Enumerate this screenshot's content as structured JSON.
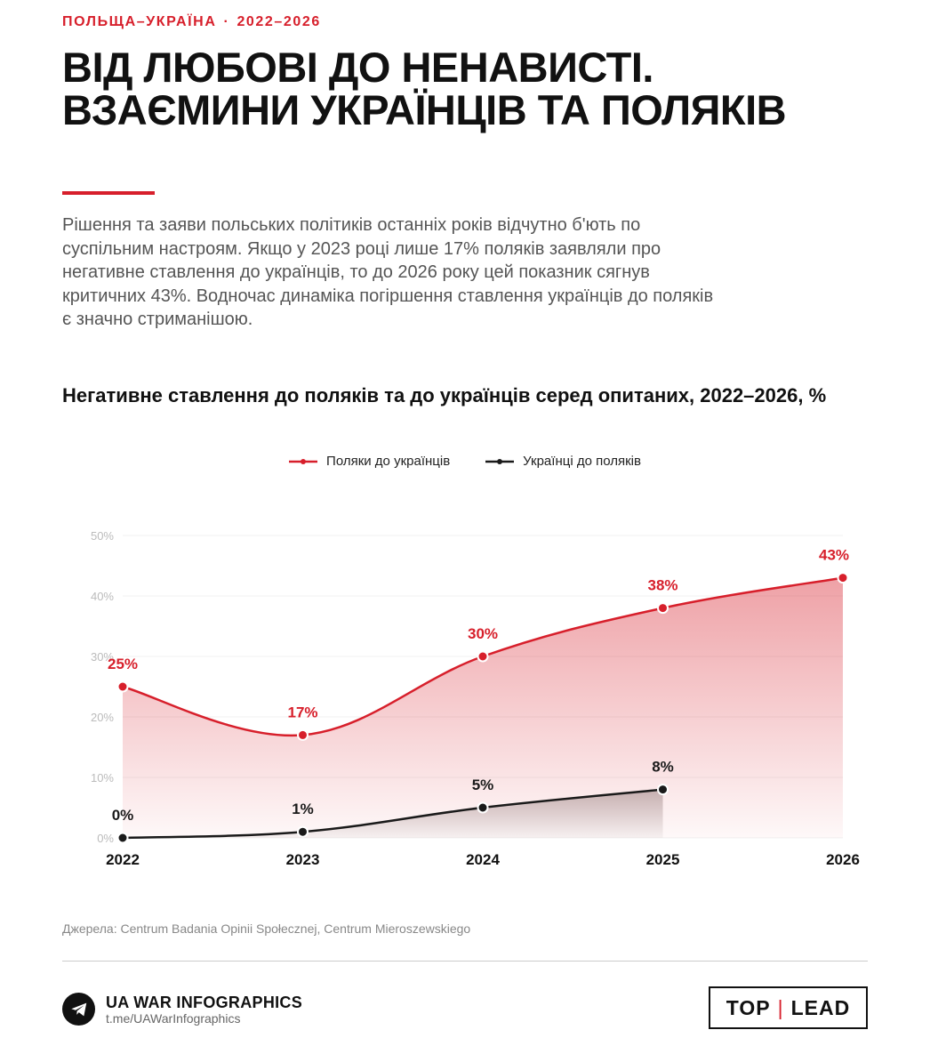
{
  "header": {
    "eyebrow_left": "ПОЛЬЩА–УКРАЇНА",
    "eyebrow_sep": "·",
    "eyebrow_right": "2022–2026",
    "title": "ВІД ЛЮБОВІ ДО НЕНАВИСТІ. ВЗАЄМИНИ УКРАЇНЦІВ ТА ПОЛЯКІВ",
    "lede": "Рішення та заяви польських політиків останніх років відчутно б'ють по суспільним настроям. Якщо у 2023 році лише 17% поляків заявляли про негативне ставлення до українців, то до 2026 року цей показник сягнув критичних 43%. Водночас динаміка погіршення ставлення українців до поляків є значно стриманішою."
  },
  "colors": {
    "accent": "#d71f2b",
    "dark": "#1a1a1a"
  },
  "chart_data": {
    "type": "area",
    "title": "Негативне ставлення до поляків та до українців серед опитаних, 2022–2026, %",
    "x": [
      "2022",
      "2023",
      "2024",
      "2025",
      "2026"
    ],
    "ylim": [
      0,
      50
    ],
    "yticks": [
      0,
      10,
      20,
      30,
      40,
      50
    ],
    "ytick_labels": [
      "0%",
      "10%",
      "20%",
      "30%",
      "40%",
      "50%"
    ],
    "grid": true,
    "legend_position": "top-center",
    "series": [
      {
        "name": "Поляки до українців",
        "color": "#d71f2b",
        "values": [
          25,
          17,
          30,
          38,
          43
        ],
        "labels": [
          "25%",
          "17%",
          "30%",
          "38%",
          "43%"
        ]
      },
      {
        "name": "Українці до поляків",
        "color": "#1a1a1a",
        "values": [
          0,
          1,
          5,
          8,
          null
        ],
        "labels": [
          "0%",
          "1%",
          "5%",
          "8%",
          null
        ]
      }
    ]
  },
  "footer": {
    "source": "Джерела: Centrum Badania Opinii Społecznej, Centrum Mieroszewskiego",
    "brand_name": "UA WAR INFOGRAPHICS",
    "brand_link": "t.me/UAWarInfographics",
    "partner_left": "TOP",
    "partner_sep": "|",
    "partner_right": "LEAD",
    "brand_icon": "telegram-icon"
  }
}
